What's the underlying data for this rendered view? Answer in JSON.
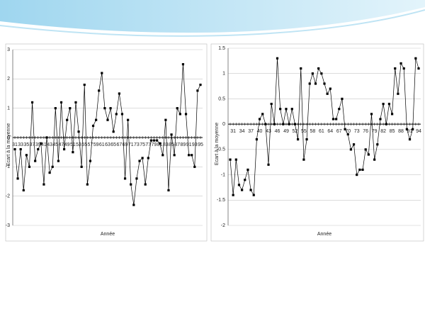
{
  "chart_data": [
    {
      "type": "line",
      "x_label": "Année",
      "y_label": "Ecart à la moyenne",
      "categories": [
        "31",
        null,
        "33",
        null,
        "35",
        null,
        "37",
        null,
        "39",
        null,
        "41",
        null,
        "43",
        null,
        "45",
        null,
        "47",
        null,
        "49",
        null,
        "51",
        null,
        "53",
        null,
        "55",
        null,
        "57",
        null,
        "59",
        null,
        "61",
        null,
        "63",
        null,
        "65",
        null,
        "67",
        null,
        "69",
        null,
        "71",
        null,
        "73",
        null,
        "75",
        null,
        "77",
        null,
        "79",
        null,
        "81",
        null,
        "83",
        null,
        "85",
        null,
        "87",
        null,
        "89",
        null,
        "91",
        null,
        "93",
        null,
        "95"
      ],
      "series": [
        {
          "color": "#000000",
          "values": [
            -0.4,
            -1.4,
            -0.4,
            -1.8,
            -0.6,
            -1.0,
            1.2,
            -0.8,
            -0.4,
            -0.2,
            -1.6,
            0.0,
            -1.2,
            -1.0,
            1.0,
            -0.8,
            1.2,
            -0.4,
            0.6,
            1.0,
            -0.5,
            1.2,
            0.2,
            -1.0,
            1.8,
            -1.6,
            -0.8,
            0.4,
            0.6,
            1.6,
            2.2,
            1.0,
            0.6,
            1.0,
            0.2,
            0.8,
            1.5,
            0.8,
            -1.4,
            0.6,
            -1.6,
            -2.3,
            -1.4,
            -0.8,
            -0.7,
            -1.6,
            -0.7,
            -0.1,
            -0.1,
            -0.1,
            -0.2,
            -0.6,
            0.6,
            -1.8,
            0.1,
            -0.6,
            1.0,
            0.8,
            2.5,
            0.8,
            -0.6,
            -0.6,
            -1.0,
            1.6,
            1.8
          ]
        }
      ],
      "ylim": [
        -3,
        3
      ],
      "yticks": [
        -3,
        -2,
        -1,
        0,
        1,
        2,
        3
      ],
      "grid": true
    },
    {
      "type": "line",
      "x_label": "Année",
      "y_label": "Ecart à la moyenne",
      "categories": [
        null,
        "31",
        null,
        null,
        "34",
        null,
        null,
        "37",
        null,
        null,
        "40",
        null,
        null,
        "43",
        null,
        null,
        "46",
        null,
        null,
        "49",
        null,
        null,
        "52",
        null,
        null,
        "55",
        null,
        null,
        "58",
        null,
        null,
        "61",
        null,
        null,
        "64",
        null,
        null,
        "67",
        null,
        null,
        "70",
        null,
        null,
        "73",
        null,
        null,
        "76",
        null,
        null,
        "79",
        null,
        null,
        "82",
        null,
        null,
        "85",
        null,
        null,
        "88",
        null,
        null,
        "91",
        null,
        null,
        "94"
      ],
      "series": [
        {
          "color": "#000000",
          "values": [
            -0.7,
            -1.4,
            -0.7,
            -1.2,
            -1.3,
            -1.1,
            -0.9,
            -1.3,
            -1.4,
            -0.3,
            0.1,
            0.2,
            0.0,
            -0.8,
            0.4,
            0.0,
            1.3,
            0.3,
            0.0,
            0.3,
            0.0,
            0.3,
            0.0,
            -0.3,
            1.1,
            -0.7,
            -0.3,
            0.8,
            1.0,
            0.8,
            1.1,
            1.0,
            0.8,
            0.6,
            0.7,
            0.1,
            0.1,
            0.3,
            0.5,
            -0.1,
            -0.2,
            -0.5,
            -0.4,
            -1.0,
            -0.9,
            -0.9,
            -0.5,
            -0.6,
            0.2,
            -0.7,
            -0.4,
            0.1,
            0.4,
            0.0,
            0.4,
            0.2,
            1.1,
            0.6,
            1.2,
            1.1,
            -0.1,
            -0.3,
            -0.1,
            1.3,
            1.1
          ]
        }
      ],
      "ylim": [
        -2,
        1.5
      ],
      "yticks": [
        -2,
        -1.5,
        -1,
        -0.5,
        0,
        0.5,
        1,
        1.5
      ],
      "grid": true
    }
  ]
}
